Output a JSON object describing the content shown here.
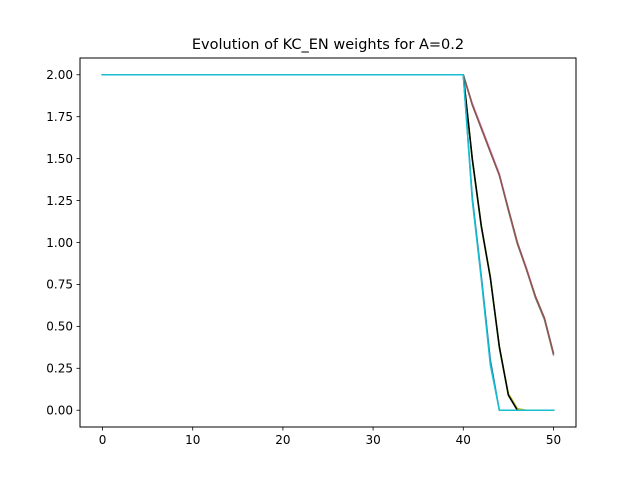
{
  "chart_data": {
    "type": "line",
    "title": "Evolution of KC_EN weights for A=0.2",
    "xlabel": "",
    "ylabel": "",
    "xlim": [
      -2.5,
      52.5
    ],
    "ylim": [
      -0.1,
      2.1
    ],
    "x_ticks": [
      0,
      10,
      20,
      30,
      40,
      50
    ],
    "x_tick_labels": [
      "0",
      "10",
      "20",
      "30",
      "40",
      "50"
    ],
    "y_ticks": [
      0.0,
      0.25,
      0.5,
      0.75,
      1.0,
      1.25,
      1.5,
      1.75,
      2.0
    ],
    "y_tick_labels": [
      "0.00",
      "0.25",
      "0.50",
      "0.75",
      "1.00",
      "1.25",
      "1.50",
      "1.75",
      "2.00"
    ],
    "grid": false,
    "legend": "none",
    "series": [
      {
        "color": "#e377c2",
        "x": [
          0,
          40,
          41,
          42,
          43,
          44,
          45,
          46,
          47,
          48,
          49,
          50
        ],
        "y": [
          2.0,
          2.0,
          1.83,
          1.69,
          1.55,
          1.41,
          1.2,
          1.0,
          0.85,
          0.68,
          0.55,
          0.34
        ]
      },
      {
        "color": "#7f7f7f",
        "x": [
          0,
          40,
          41,
          42,
          43,
          44,
          45,
          46,
          47,
          48,
          49,
          50
        ],
        "y": [
          2.0,
          2.0,
          1.82,
          1.68,
          1.54,
          1.4,
          1.19,
          0.99,
          0.84,
          0.67,
          0.54,
          0.33
        ]
      },
      {
        "color": "#8c564b",
        "x": [
          0,
          40,
          41,
          42,
          43,
          44,
          45,
          46,
          47,
          48,
          49,
          50
        ],
        "y": [
          2.0,
          2.0,
          1.82,
          1.68,
          1.54,
          1.4,
          1.2,
          1.0,
          0.84,
          0.68,
          0.55,
          0.34
        ]
      },
      {
        "color": "#bcbd22",
        "x": [
          0,
          40,
          41,
          42,
          43,
          44,
          45,
          46,
          47,
          48,
          49,
          50
        ],
        "y": [
          2.0,
          2.0,
          1.5,
          1.1,
          0.8,
          0.38,
          0.1,
          0.01,
          0.0,
          0.0,
          0.0,
          0.0
        ]
      },
      {
        "color": "#2ca02c",
        "x": [
          0,
          40,
          41,
          42,
          43,
          44,
          45,
          46,
          47,
          48,
          49,
          50
        ],
        "y": [
          2.0,
          2.0,
          1.49,
          1.09,
          0.79,
          0.37,
          0.09,
          0.0,
          0.0,
          0.0,
          0.0,
          0.0
        ]
      },
      {
        "color": "#000000",
        "x": [
          0,
          40,
          41,
          42,
          43,
          44,
          45,
          46,
          47,
          48,
          49,
          50
        ],
        "y": [
          2.0,
          2.0,
          1.5,
          1.1,
          0.79,
          0.38,
          0.09,
          0.0,
          0.0,
          0.0,
          0.0,
          0.0
        ]
      },
      {
        "color": "#1f77b4",
        "x": [
          0,
          40,
          41,
          42,
          43,
          44,
          45,
          46,
          47,
          48,
          49,
          50
        ],
        "y": [
          2.0,
          2.0,
          1.27,
          0.8,
          0.3,
          0.0,
          0.0,
          0.0,
          0.0,
          0.0,
          0.0,
          0.0
        ]
      },
      {
        "color": "#17becf",
        "x": [
          0,
          40,
          41,
          42,
          43,
          44,
          45,
          46,
          47,
          48,
          49,
          50
        ],
        "y": [
          2.0,
          2.0,
          1.25,
          0.78,
          0.27,
          0.0,
          0.0,
          0.0,
          0.0,
          0.0,
          0.0,
          0.0
        ]
      }
    ]
  }
}
